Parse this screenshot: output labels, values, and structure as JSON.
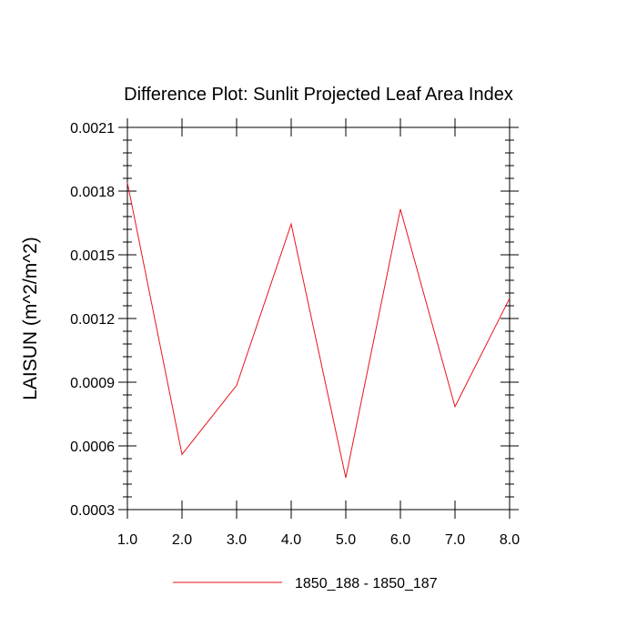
{
  "chart_data": {
    "type": "line",
    "title": "Difference Plot: Sunlit Projected Leaf Area Index",
    "ylabel": "LAISUN  (m^2/m^2)",
    "xlabel": "",
    "xlim": [
      1.0,
      8.0
    ],
    "ylim": [
      0.0003,
      0.0021
    ],
    "x_ticks": [
      "1.0",
      "2.0",
      "3.0",
      "4.0",
      "5.0",
      "6.0",
      "7.0",
      "8.0"
    ],
    "y_ticks": [
      "0.0003",
      "0.0006",
      "0.0009",
      "0.0012",
      "0.0015",
      "0.0018",
      "0.0021"
    ],
    "series": [
      {
        "name": "1850_188 - 1850_187",
        "color": "#e8141e",
        "x": [
          1.0,
          2.0,
          3.0,
          4.0,
          5.0,
          6.0,
          7.0,
          8.0
        ],
        "values": [
          0.00184,
          0.00056,
          0.000885,
          0.001645,
          0.00045,
          0.001715,
          0.000785,
          0.001295
        ]
      }
    ],
    "legend_position": "bottom-center",
    "grid": false
  }
}
